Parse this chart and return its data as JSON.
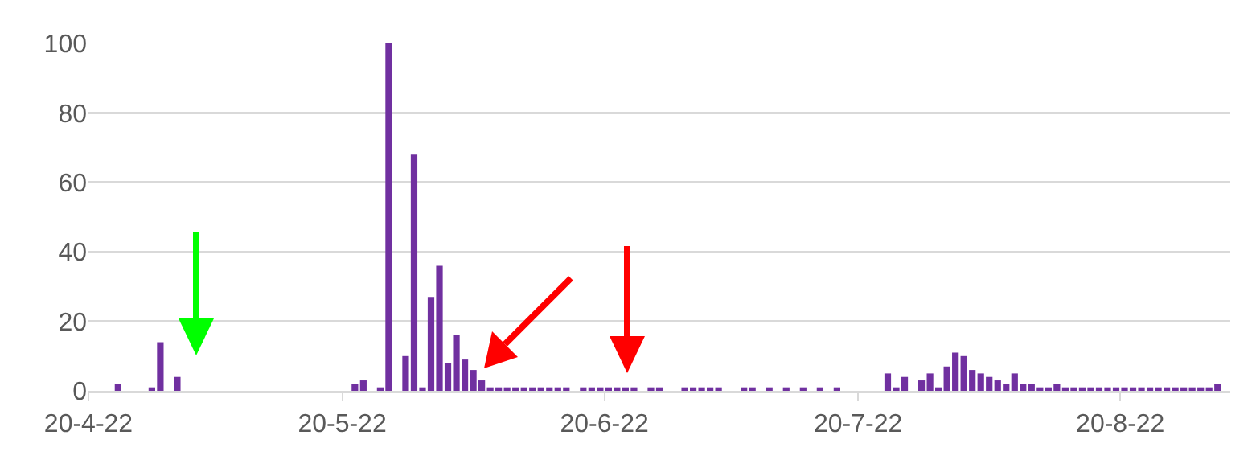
{
  "chart_data": {
    "type": "bar",
    "x": [
      "--04-25",
      "--04-29",
      "--04-30",
      "--05-02",
      "--05-23",
      "--05-24",
      "--05-26",
      "--05-27",
      "--05-29",
      "--05-30",
      "--05-31",
      "--06-01",
      "--06-02",
      "--06-03",
      "--06-04",
      "--06-05",
      "--06-06",
      "--06-07",
      "--06-08",
      "--06-09",
      "--06-10",
      "--06-11",
      "--06-12",
      "--06-13",
      "--06-14",
      "--06-15",
      "--06-16",
      "--06-17",
      "--06-19",
      "--06-20",
      "--06-21",
      "--06-22",
      "--06-23",
      "--06-24",
      "--06-25",
      "--06-27",
      "--06-28",
      "--07-01",
      "--07-02",
      "--07-03",
      "--07-04",
      "--07-05",
      "--07-08",
      "--07-09",
      "--07-11",
      "--07-13",
      "--07-15",
      "--07-17",
      "--07-19",
      "--07-25",
      "--07-26",
      "--07-27",
      "--07-29",
      "--07-30",
      "--07-31",
      "--08-01",
      "--08-02",
      "--08-03",
      "--08-04",
      "--08-05",
      "--08-06",
      "--08-07",
      "--08-08",
      "--08-09",
      "--08-10",
      "--08-11",
      "--08-12",
      "--08-13",
      "--08-14",
      "--08-15",
      "--08-16",
      "--08-17",
      "--08-18",
      "--08-19",
      "--08-20",
      "--08-21",
      "--08-22",
      "--08-23",
      "--08-24",
      "--08-25",
      "--08-26",
      "--08-27",
      "--08-28",
      "--08-29",
      "--08-30",
      "--08-31",
      "--09-01",
      "--09-02"
    ],
    "values": [
      2,
      1,
      14,
      4,
      2,
      3,
      1,
      100,
      10,
      68,
      1,
      27,
      36,
      8,
      16,
      9,
      6,
      3,
      1,
      1,
      1,
      1,
      1,
      1,
      1,
      1,
      1,
      1,
      1,
      1,
      1,
      1,
      1,
      1,
      1,
      1,
      1,
      1,
      1,
      1,
      1,
      1,
      1,
      1,
      1,
      1,
      1,
      1,
      1,
      5,
      1,
      4,
      3,
      5,
      1,
      7,
      11,
      10,
      6,
      5,
      4,
      3,
      2,
      5,
      2,
      2,
      1,
      1,
      2,
      1,
      1,
      1,
      1,
      1,
      1,
      1,
      1,
      1,
      1,
      1,
      1,
      1,
      1,
      1,
      1,
      1,
      1,
      2
    ],
    "color": "#7030a0",
    "xlim": [
      "--04-22",
      "--09-04"
    ],
    "xticks": [
      {
        "value": "--04-22",
        "label": "20-4-22"
      },
      {
        "value": "--05-22",
        "label": "20-5-22"
      },
      {
        "value": "--06-22",
        "label": "20-6-22"
      },
      {
        "value": "--07-22",
        "label": "20-7-22"
      },
      {
        "value": "--08-22",
        "label": "20-8-22"
      }
    ],
    "ylim": [
      0,
      100
    ],
    "yticks": [
      0,
      20,
      40,
      60,
      80,
      100
    ],
    "grid": "y"
  }
}
